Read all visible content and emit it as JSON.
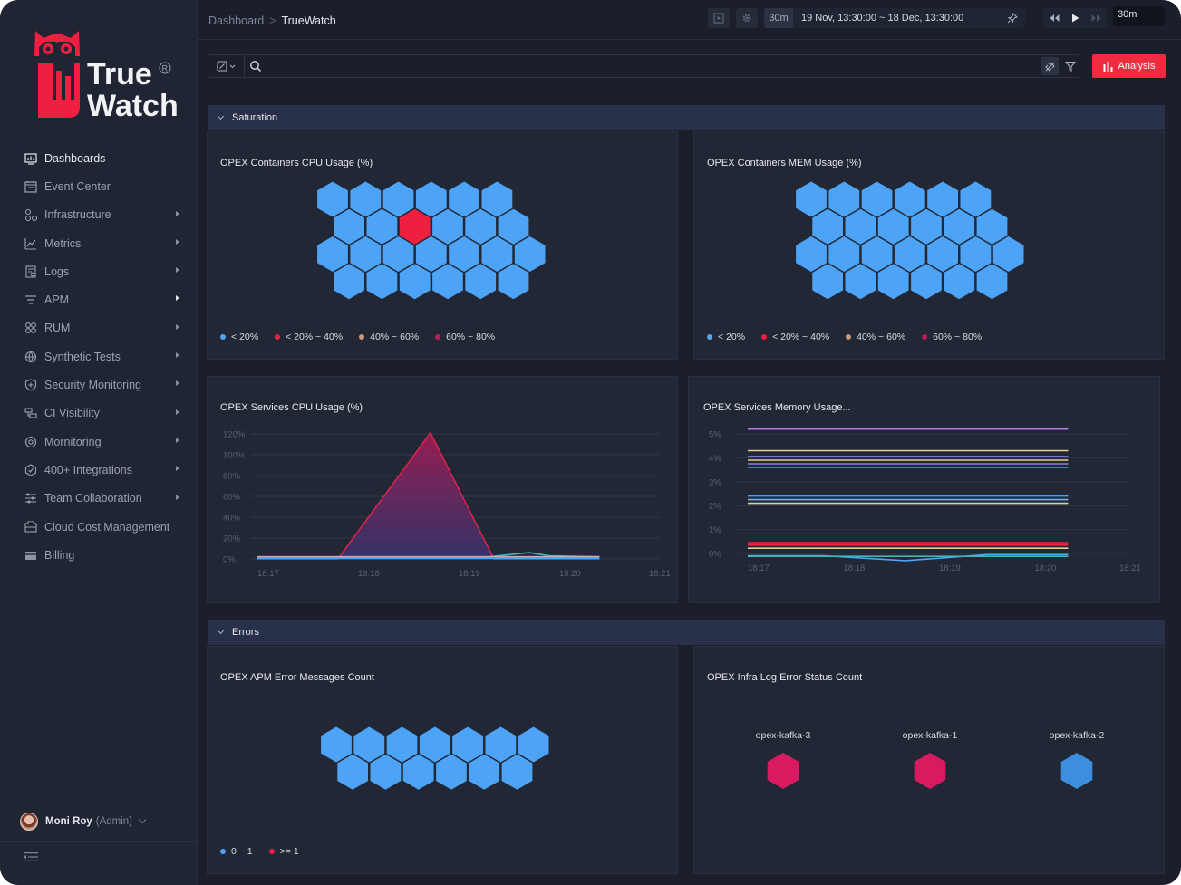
{
  "brand": {
    "line1": "True",
    "line2": "Watch",
    "registered": "R"
  },
  "sidebar": {
    "items": [
      {
        "label": "Dashboards",
        "icon": "dashboard-icon",
        "active": true,
        "arrow": false
      },
      {
        "label": "Event Center",
        "icon": "calendar-icon",
        "active": false,
        "arrow": false
      },
      {
        "label": "Infrastructure",
        "icon": "infrastructure-icon",
        "active": false,
        "arrow": true
      },
      {
        "label": "Metrics",
        "icon": "metrics-icon",
        "active": false,
        "arrow": true
      },
      {
        "label": "Logs",
        "icon": "logs-icon",
        "active": false,
        "arrow": true
      },
      {
        "label": "APM",
        "icon": "apm-icon",
        "active": false,
        "arrow": true
      },
      {
        "label": "RUM",
        "icon": "rum-icon",
        "active": false,
        "arrow": true
      },
      {
        "label": "Synthetic Tests",
        "icon": "globe-icon",
        "active": false,
        "arrow": true
      },
      {
        "label": "Security Monitoring",
        "icon": "shield-icon",
        "active": false,
        "arrow": true
      },
      {
        "label": "CI Visibility",
        "icon": "ci-icon",
        "active": false,
        "arrow": true
      },
      {
        "label": "Mornitoring",
        "icon": "monitor-icon",
        "active": false,
        "arrow": true
      },
      {
        "label": "400+ Integrations",
        "icon": "integrations-icon",
        "active": false,
        "arrow": true
      },
      {
        "label": "Team Collaboration",
        "icon": "sliders-icon",
        "active": false,
        "arrow": true
      },
      {
        "label": "Cloud Cost Management",
        "icon": "cost-icon",
        "active": false,
        "arrow": false
      },
      {
        "label": "Billing",
        "icon": "billing-icon",
        "active": false,
        "arrow": false
      }
    ],
    "user": {
      "name": "Moni Roy",
      "role": "(Admin)"
    }
  },
  "topbar": {
    "breadcrumb": {
      "parent": "Dashboard",
      "separator": ">",
      "current": "TrueWatch"
    },
    "time": {
      "quick": "30m",
      "range": "19 Nov, 13:30:00 ~ 18 Dec, 13:30:00"
    },
    "refresh": "30m"
  },
  "filterbar": {
    "search_value": ""
  },
  "analysis_label": "Analysis",
  "groups": {
    "saturation": "Saturation",
    "errors": "Errors"
  },
  "colors": {
    "hex_blue": "#4da3f5",
    "hex_red": "#ef1f3f",
    "hex_magenta": "#d81b60",
    "hex_steel": "#3c8fde",
    "accent": "#ef2b3f"
  },
  "panels": {
    "cpu_hex": {
      "title": "OPEX Containers CPU Usage (%)",
      "legend": [
        "< 20%",
        "< 20% ~ 40%",
        "40% ~ 60%",
        "60% ~ 80%"
      ],
      "legend_colors": [
        "#4da3f5",
        "#ef1f3f",
        "#c99779",
        "#c2185b"
      ]
    },
    "mem_hex": {
      "title": "OPEX Containers MEM Usage (%)",
      "legend": [
        "< 20%",
        "< 20% ~ 40%",
        "40% ~ 60%",
        "60% ~ 80%"
      ],
      "legend_colors": [
        "#4da3f5",
        "#ef1f3f",
        "#c99779",
        "#c2185b"
      ]
    },
    "apm_errors": {
      "title": "OPEX APM Error Messages Count",
      "legend": [
        "0 ~ 1",
        ">= 1"
      ],
      "legend_colors": [
        "#4da3f5",
        "#ef1f3f"
      ]
    },
    "infra_log": {
      "title": "OPEX Infra Log Error Status Count",
      "nodes": [
        {
          "label": "opex-kafka-3",
          "color": "#d81b60"
        },
        {
          "label": "opex-kafka-1",
          "color": "#d81b60"
        },
        {
          "label": "opex-kafka-2",
          "color": "#3c8fde"
        }
      ]
    }
  },
  "chart_data": [
    {
      "type": "area",
      "title": "OPEX Services CPU Usage (%)",
      "x": [
        "18:17",
        "18:18",
        "18:19",
        "18:20",
        "18:21"
      ],
      "yticks": [
        "120%",
        "100%",
        "80%",
        "60%",
        "40%",
        "20%",
        "0%"
      ],
      "ylim": [
        0,
        120
      ],
      "xlim": [
        0,
        4
      ],
      "grid": true,
      "series": [
        {
          "color": "#e8234a",
          "points": [
            [
              0,
              0
            ],
            [
              0.8,
              0
            ],
            [
              1.72,
              121
            ],
            [
              2.35,
              0
            ],
            [
              3.4,
              0
            ]
          ]
        },
        {
          "color": "#3fb7b0",
          "points": [
            [
              0,
              1
            ],
            [
              1.5,
              1
            ],
            [
              2.3,
              2
            ],
            [
              2.7,
              6
            ],
            [
              2.9,
              3
            ],
            [
              3.4,
              2
            ]
          ]
        },
        {
          "color": "#e7d08a",
          "points": [
            [
              0,
              2
            ],
            [
              3.4,
              2
            ]
          ]
        },
        {
          "color": "#9c8de8",
          "points": [
            [
              0,
              1.5
            ],
            [
              3.4,
              1.5
            ]
          ]
        },
        {
          "color": "#4da3f5",
          "points": [
            [
              0,
              0.5
            ],
            [
              3.4,
              0.5
            ]
          ]
        }
      ]
    },
    {
      "type": "line",
      "title": "OPEX Services Memory Usage...",
      "x": [
        "18:17",
        "18:18",
        "18:19",
        "18:20",
        "18:21"
      ],
      "yticks": [
        "5%",
        "4%",
        "3%",
        "2%",
        "1%",
        "0%"
      ],
      "ylim": [
        0,
        5
      ],
      "xlim": [
        0,
        4
      ],
      "grid": true,
      "series": [
        {
          "color": "#b57ae8",
          "points": [
            [
              0,
              5.2
            ],
            [
              3.35,
              5.2
            ]
          ]
        },
        {
          "color": "#e7d08a",
          "points": [
            [
              0,
              4.3
            ],
            [
              3.35,
              4.3
            ]
          ]
        },
        {
          "color": "#9c8de8",
          "points": [
            [
              0,
              4.05
            ],
            [
              3.35,
              4.05
            ]
          ]
        },
        {
          "color": "#e7d08a",
          "points": [
            [
              0,
              3.9
            ],
            [
              3.35,
              3.9
            ]
          ]
        },
        {
          "color": "#8a7fd8",
          "points": [
            [
              0,
              3.75
            ],
            [
              3.35,
              3.75
            ]
          ]
        },
        {
          "color": "#4da3f5",
          "points": [
            [
              0,
              3.6
            ],
            [
              3.35,
              3.6
            ]
          ]
        },
        {
          "color": "#4da3f5",
          "points": [
            [
              0,
              2.4
            ],
            [
              3.35,
              2.4
            ]
          ]
        },
        {
          "color": "#6fb6f7",
          "points": [
            [
              0,
              2.25
            ],
            [
              3.35,
              2.25
            ]
          ]
        },
        {
          "color": "#e7d08a",
          "points": [
            [
              0,
              2.1
            ],
            [
              3.35,
              2.1
            ]
          ]
        },
        {
          "color": "#ef1f3f",
          "points": [
            [
              0,
              0.45
            ],
            [
              3.35,
              0.45
            ]
          ]
        },
        {
          "color": "#e8234a",
          "points": [
            [
              0,
              0.35
            ],
            [
              3.35,
              0.35
            ]
          ]
        },
        {
          "color": "#e7d08a",
          "points": [
            [
              0,
              0.22
            ],
            [
              3.35,
              0.22
            ]
          ]
        },
        {
          "color": "#4da3f5",
          "points": [
            [
              0,
              -0.1
            ],
            [
              0.8,
              -0.1
            ],
            [
              1.65,
              -0.3
            ],
            [
              2.5,
              -0.05
            ],
            [
              3.35,
              -0.05
            ]
          ]
        },
        {
          "color": "#3fb7b0",
          "points": [
            [
              0,
              -0.12
            ],
            [
              3.35,
              -0.12
            ]
          ]
        }
      ]
    }
  ]
}
